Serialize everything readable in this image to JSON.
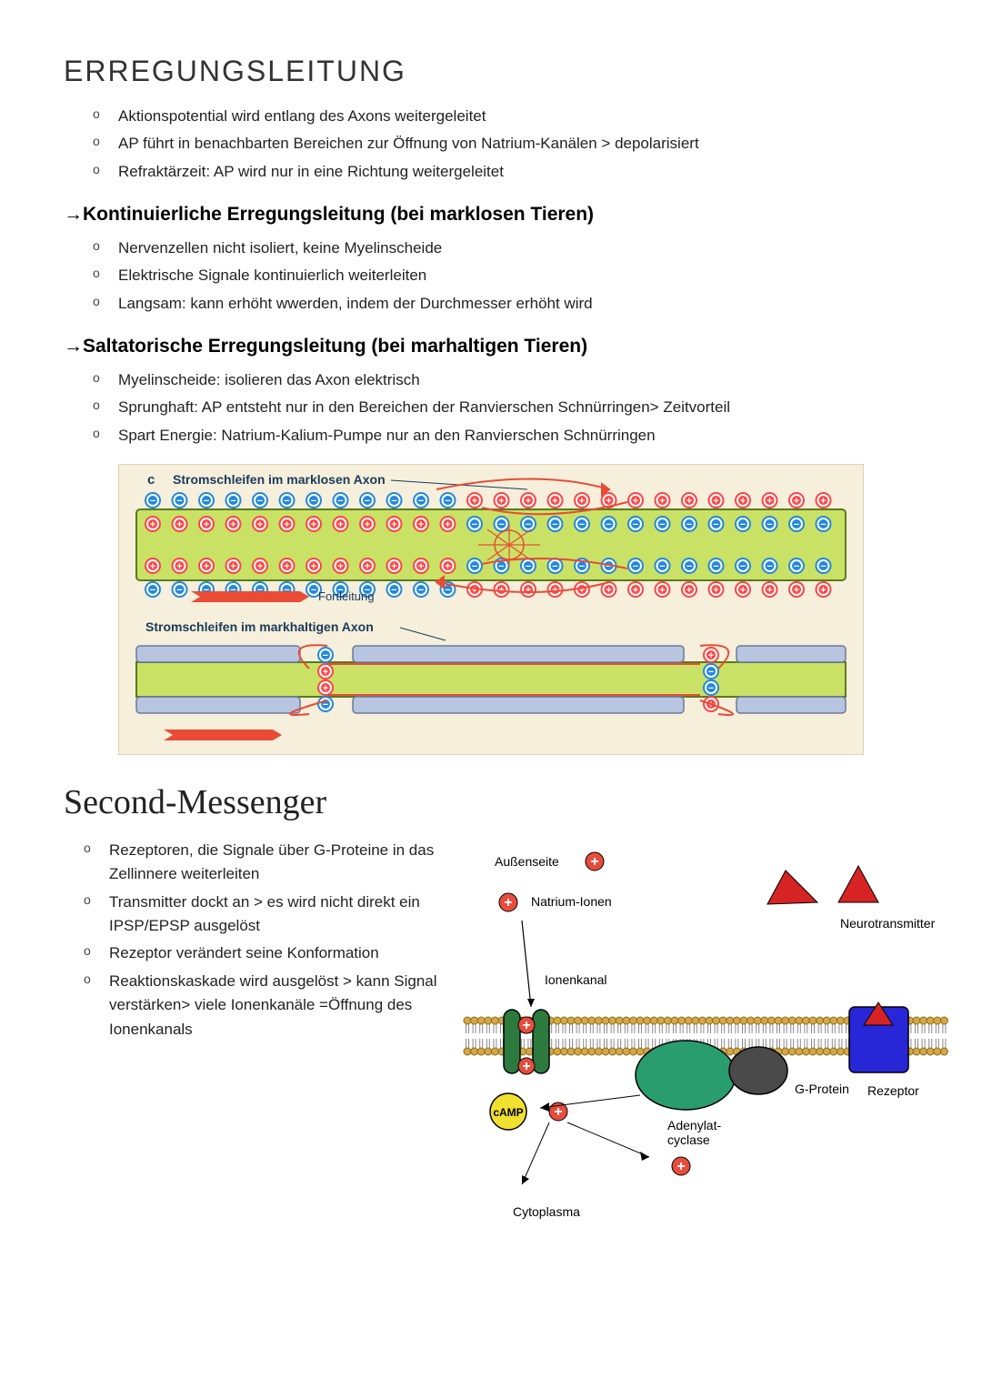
{
  "section1": {
    "title": "ERREGUNGSLEITUNG",
    "intro": [
      "Aktionspotential wird entlang des Axons weitergeleitet",
      "AP führt in benachbarten Bereichen zur Öffnung von Natrium-Kanälen > depolarisiert",
      "Refraktärzeit: AP wird nur in eine Richtung weitergeleitet"
    ],
    "sub1": {
      "title": "→Kontinuierliche Erregungsleitung (bei marklosen Tieren)",
      "items": [
        "Nervenzellen nicht isoliert, keine Myelinscheide",
        "Elektrische Signale kontinuierlich weiterleiten",
        "Langsam: kann erhöht wwerden, indem der Durchmesser erhöht wird"
      ]
    },
    "sub2": {
      "title": "→Saltatorische Erregungsleitung (bei marhaltigen Tieren)",
      "items": [
        "Myelinscheide: isolieren das Axon elektrisch",
        "Sprunghaft: AP entsteht nur in den Bereichen der Ranvierschen Schnürringen> Zeitvorteil",
        "Spart Energie: Natrium-Kalium-Pumpe nur an den Ranvierschen Schnürringen"
      ]
    }
  },
  "diagram1": {
    "bg": "#f5efdb",
    "axon_fill": "#c9e265",
    "axon_stroke": "#5a7a1f",
    "myelin_fill": "#b8c5e0",
    "myelin_stroke": "#6a7a9a",
    "pos_fill": "#ff4444",
    "neg_fill": "#2288dd",
    "arrow_color": "#e94b35",
    "label_c": "c",
    "label_top": "Stromschleifen im marklosen Axon",
    "label_fort": "Fortleitung",
    "label_bottom": "Stromschleifen im markhaltigen Axon",
    "ion_radius": 8,
    "title_fontsize": 14,
    "title_color": "#1a3a5a"
  },
  "section2": {
    "title": "Second-Messenger",
    "items": [
      "Rezeptoren, die Signale über G-Proteine in das Zellinnere weiterleiten",
      "Transmitter dockt an > es wird nicht direkt ein IPSP/EPSP ausgelöst",
      "Rezeptor verändert seine Konformation",
      "Reaktionskaskade wird ausgelöst > kann Signal verstärken> viele Ionenkanäle =Öffnung des Ionenkanals"
    ]
  },
  "diagram2": {
    "labels": {
      "aussen": "Außenseite",
      "natrium": "Natrium-Ionen",
      "neuro": "Neurotransmitter",
      "ionenkanal": "Ionenkanal",
      "gprotein": "G-Protein",
      "rezeptor": "Rezeptor",
      "adenylat": "Adenylat-cyclase",
      "camp": "cAMP",
      "cyto": "Cytoplasma"
    },
    "colors": {
      "membrane_head": "#d4a843",
      "membrane_tail": "#888",
      "channel": "#2d7a3e",
      "gprotein1": "#2a9d6f",
      "gprotein2": "#4a4a4a",
      "rezeptor": "#2727d8",
      "camp": "#f0e030",
      "ion": "#e74c3c",
      "neuro": "#d62323",
      "label_fontsize": 14
    }
  }
}
